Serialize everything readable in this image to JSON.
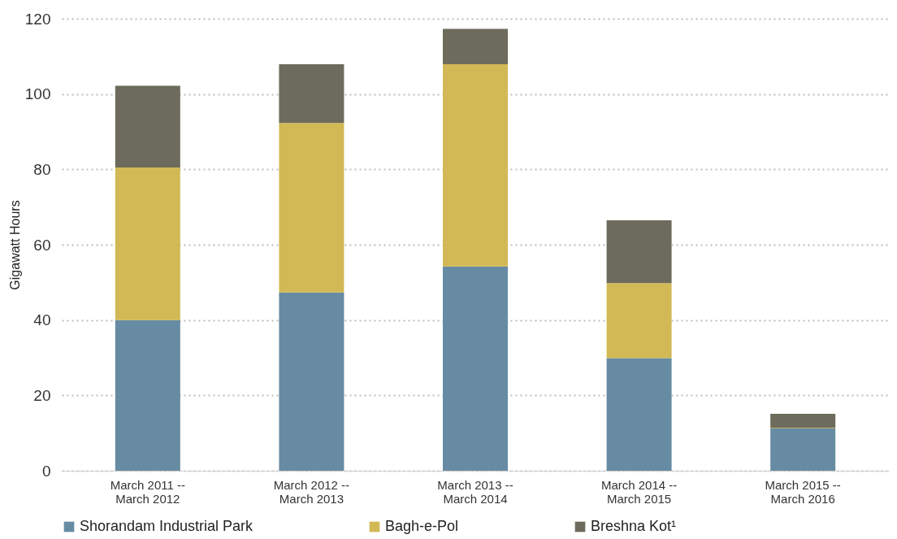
{
  "chart_data": {
    "type": "bar",
    "stacked": true,
    "ylabel": "Gigawatt Hours",
    "categories": [
      "March 2011 --\nMarch 2012",
      "March 2012 --\nMarch 2013",
      "March 2013 --\nMarch 2014",
      "March 2014 --\nMarch 2015",
      "March 2015 --\nMarch 2016"
    ],
    "series": [
      {
        "name": "Shorandam Industrial Park",
        "color": "#678ba3",
        "values": [
          40,
          47.3,
          54.2,
          29.9,
          11.2
        ]
      },
      {
        "name": "Bagh-e-Pol",
        "color": "#d2b955",
        "values": [
          40.5,
          45,
          53.7,
          19.9,
          0.2
        ]
      },
      {
        "name": "Breshna Kot¹",
        "color": "#6d6b5b",
        "values": [
          21.7,
          15.6,
          9.4,
          16.7,
          3.7
        ]
      }
    ],
    "ylim": [
      0,
      120
    ],
    "yticks": [
      0,
      20,
      40,
      60,
      80,
      100,
      120
    ],
    "grid": "y",
    "legend": "bottom"
  }
}
